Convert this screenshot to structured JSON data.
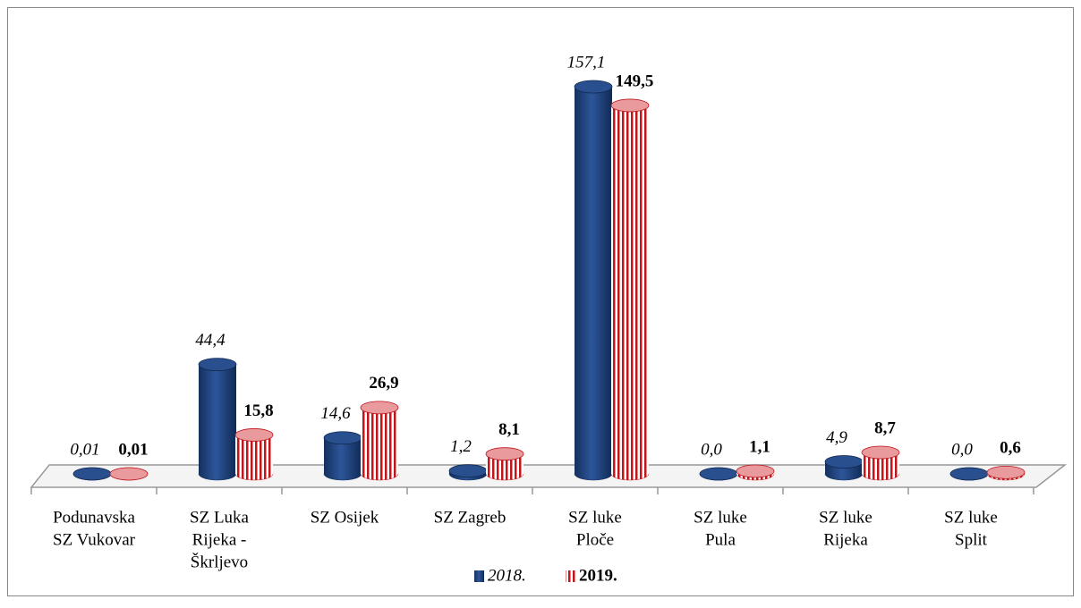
{
  "chart_data": {
    "type": "bar3d",
    "categories": [
      [
        "Podunavska",
        "SZ Vukovar"
      ],
      [
        "SZ Luka",
        "Rijeka -",
        "Škrljevo"
      ],
      [
        "SZ Osijek"
      ],
      [
        "SZ Zagreb"
      ],
      [
        "SZ luke",
        "Ploče"
      ],
      [
        "SZ luke",
        "Pula"
      ],
      [
        "SZ luke",
        "Rijeka"
      ],
      [
        "SZ luke",
        "Split"
      ]
    ],
    "series": [
      {
        "name": "2018.",
        "color": "#1f3f7a",
        "values": [
          0.01,
          44.4,
          14.6,
          1.2,
          157.1,
          0.0,
          4.9,
          0.0
        ],
        "value_labels": [
          "0,01",
          "44,4",
          "14,6",
          "1,2",
          "157,1",
          "0,0",
          "4,9",
          "0,0"
        ]
      },
      {
        "name": "2019.",
        "color": "#c0161c",
        "values": [
          0.01,
          15.8,
          26.9,
          8.1,
          149.5,
          1.1,
          8.7,
          0.6
        ],
        "value_labels": [
          "0,01",
          "15,8",
          "26,9",
          "8,1",
          "149,5",
          "1,1",
          "8,7",
          "0,6"
        ]
      }
    ],
    "ylim": [
      0,
      160
    ],
    "legend": "bottom"
  }
}
